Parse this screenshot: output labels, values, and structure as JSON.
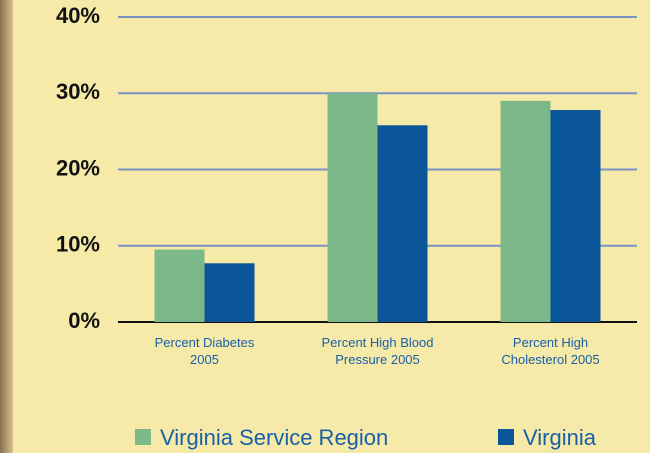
{
  "chart_data": {
    "type": "bar",
    "categories": [
      "Percent Diabetes 2005",
      "Percent High Blood Pressure 2005",
      "Percent High Cholesterol 2005"
    ],
    "series": [
      {
        "name": "Virginia Service Region",
        "color": "#7db88a",
        "values": [
          9.5,
          30,
          29
        ]
      },
      {
        "name": "Virginia",
        "color": "#0b5699",
        "values": [
          7.7,
          25.8,
          27.8
        ]
      }
    ],
    "ylim": [
      0,
      40
    ],
    "yticks": [
      {
        "value": 0,
        "label": "0%"
      },
      {
        "value": 10,
        "label": "10%"
      },
      {
        "value": 20,
        "label": "20%"
      },
      {
        "value": 30,
        "label": "30%"
      },
      {
        "value": 40,
        "label": "40%"
      }
    ],
    "grid": true
  }
}
